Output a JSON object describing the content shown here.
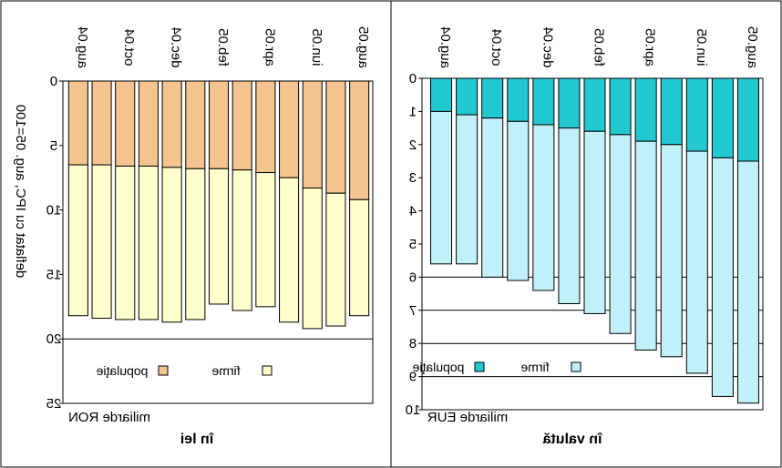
{
  "chart_data": [
    {
      "type": "bar",
      "stacked": true,
      "orientation": "mirrored-vertical",
      "title": "în lei",
      "unit_label": "miliarde RON",
      "ylabel": "deflatat cu IPC, aug. 05=100",
      "ylim": [
        0,
        25
      ],
      "yticks": [
        0,
        5,
        10,
        15,
        20,
        25
      ],
      "gridlines": [
        20
      ],
      "categories": [
        "aug.04",
        "",
        "oct.04",
        "",
        "dec.04",
        "",
        "feb.05",
        "",
        "apr.05",
        "",
        "iun.05",
        "",
        "aug.05"
      ],
      "series": [
        {
          "name": "firme",
          "color": "#ffffcc",
          "values": [
            11.7,
            11.9,
            11.9,
            11.9,
            12.0,
            11.7,
            10.5,
            10.9,
            10.4,
            11.2,
            10.9,
            10.3,
            9.0
          ]
        },
        {
          "name": "populaţie",
          "color": "#f4c490",
          "values": [
            6.5,
            6.5,
            6.6,
            6.6,
            6.7,
            6.8,
            6.8,
            6.9,
            7.1,
            7.5,
            8.3,
            8.7,
            9.2
          ]
        }
      ],
      "legend": [
        "populaţie",
        "firme"
      ]
    },
    {
      "type": "bar",
      "stacked": true,
      "orientation": "mirrored-vertical",
      "title": "în valută",
      "unit_label": "miliarde EUR",
      "ylim": [
        0,
        10
      ],
      "yticks": [
        0,
        1,
        2,
        3,
        4,
        5,
        6,
        7,
        8,
        9,
        10
      ],
      "gridlines": [
        6,
        7,
        8,
        9
      ],
      "categories": [
        "aug.04",
        "",
        "oct.04",
        "",
        "dec.04",
        "",
        "feb.05",
        "",
        "apr.05",
        "",
        "iun.05",
        "",
        "aug.05"
      ],
      "series": [
        {
          "name": "firme",
          "color": "#c0f0f8",
          "values": [
            4.6,
            4.5,
            4.8,
            4.8,
            5.0,
            5.3,
            5.5,
            6.0,
            6.3,
            6.4,
            6.7,
            7.2,
            7.3
          ]
        },
        {
          "name": "populaţie",
          "color": "#22c8d0",
          "values": [
            1.0,
            1.1,
            1.2,
            1.3,
            1.4,
            1.5,
            1.6,
            1.7,
            1.9,
            2.0,
            2.2,
            2.4,
            2.5
          ]
        }
      ],
      "legend": [
        "populaţie",
        "firme"
      ]
    }
  ]
}
